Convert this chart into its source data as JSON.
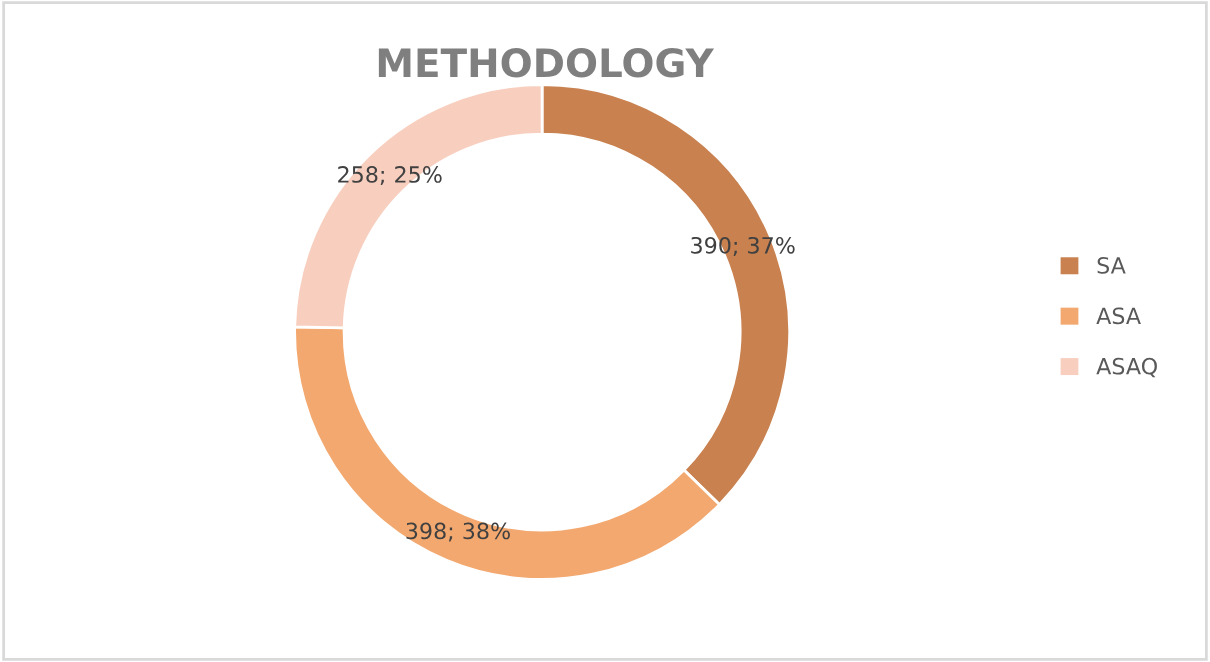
{
  "chart_data": {
    "type": "donut",
    "title": "METHODOLOGY",
    "categories": [
      "SA",
      "ASA",
      "ASAQ"
    ],
    "values": [
      390,
      398,
      258
    ],
    "colors": [
      "#c8814f",
      "#f2a86f",
      "#f8cfbf"
    ],
    "value_labels": [
      "390; 37%",
      "398; 38%",
      "258; 25%"
    ],
    "legend": "right"
  }
}
